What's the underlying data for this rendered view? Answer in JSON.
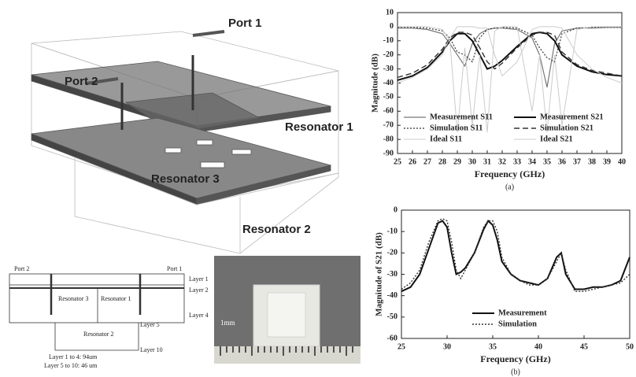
{
  "diagram": {
    "port1": "Port 1",
    "port2": "Port 2",
    "resonator1": "Resonator 1",
    "resonator3": "Resonator 3",
    "resonator2": "Resonator 2"
  },
  "cross_section": {
    "port2": "Port 2",
    "port1": "Port 1",
    "layer1": "Layer 1",
    "layer2": "Layer 2",
    "layer4": "Layer 4",
    "layer5": "Layer 5",
    "layer10": "Layer 10",
    "resonator3": "Resonator 3",
    "resonator1": "Resonator 1",
    "resonator2": "Resonator 2",
    "note1": "Layer 1 to 4: 94um",
    "note2": "Layer 5 to 10: 46 um"
  },
  "photo": {
    "scale": "1mm"
  },
  "chart_data": [
    {
      "type": "line",
      "caption": "(a)",
      "x_label": "Frequency (GHz)",
      "y_label": "Magnitude (dB)",
      "x": [
        25,
        26,
        27,
        28,
        28.5,
        29,
        29.5,
        30,
        30.5,
        31,
        31.5,
        32,
        33,
        34,
        34.5,
        35,
        35.5,
        36,
        37,
        38,
        39,
        40
      ],
      "xlim": [
        25,
        40
      ],
      "xticks": [
        25,
        26,
        27,
        28,
        29,
        30,
        31,
        32,
        33,
        34,
        35,
        36,
        37,
        38,
        39,
        40
      ],
      "ylim": [
        -90,
        10
      ],
      "yticks": [
        10,
        0,
        -10,
        -20,
        -30,
        -40,
        -50,
        -60,
        -70,
        -80,
        -90
      ],
      "legend": "lower left",
      "series": [
        {
          "name": "Measurement S11",
          "color": "#777777",
          "dash": "solid",
          "width": 1.2,
          "values": [
            -1,
            -1,
            -2,
            -5,
            -12,
            -20,
            -28,
            -12,
            -5,
            -2,
            -1,
            -1,
            -2,
            -8,
            -20,
            -43,
            -12,
            -3,
            -1,
            -1,
            -0.5,
            -0.5
          ]
        },
        {
          "name": "Measurement S21",
          "color": "#111111",
          "dash": "solid",
          "width": 2,
          "values": [
            -38,
            -35,
            -29,
            -18,
            -10,
            -5,
            -5,
            -10,
            -20,
            -30,
            -28,
            -24,
            -14,
            -5,
            -4,
            -5,
            -10,
            -20,
            -28,
            -32,
            -34,
            -35
          ]
        },
        {
          "name": "Simulation S11",
          "color": "#333333",
          "dash": "dotted",
          "width": 1.2,
          "values": [
            -0.5,
            -0.5,
            -1,
            -3,
            -8,
            -18,
            -20,
            -25,
            -8,
            -2,
            -1,
            -0.5,
            -1,
            -6,
            -15,
            -22,
            -25,
            -5,
            -1,
            -0.5,
            -0.5,
            -0.5
          ]
        },
        {
          "name": "Simulation S21",
          "color": "#333333",
          "dash": "dashed",
          "width": 1.4,
          "values": [
            -36,
            -33,
            -27,
            -16,
            -8,
            -4,
            -4,
            -6,
            -15,
            -25,
            -30,
            -26,
            -15,
            -6,
            -4,
            -4,
            -6,
            -18,
            -27,
            -31,
            -33,
            -35
          ]
        },
        {
          "name": "Ideal S11",
          "color": "#cccccc",
          "dash": "solid",
          "width": 1,
          "values": [
            0,
            0,
            0,
            -2,
            -10,
            -75,
            -15,
            -70,
            -20,
            -75,
            -3,
            0,
            0,
            -60,
            -20,
            -75,
            -20,
            -70,
            -2,
            0,
            0,
            0
          ]
        },
        {
          "name": "Ideal S21",
          "color": "#cccccc",
          "dash": "solid",
          "width": 1,
          "values": [
            -40,
            -36,
            -30,
            -20,
            -8,
            0,
            0,
            0,
            -1,
            -1,
            -20,
            -35,
            -25,
            -2,
            0,
            0,
            0,
            -1,
            -20,
            -30,
            -36,
            -40
          ]
        }
      ]
    },
    {
      "type": "line",
      "caption": "(b)",
      "x_label": "Frequency (GHz)",
      "y_label": "Magnitude of S21 (dB)",
      "x": [
        25,
        26,
        27,
        28,
        29,
        29.5,
        30,
        30.5,
        31,
        31.5,
        32,
        33,
        34,
        34.5,
        35,
        35.5,
        36,
        37,
        38,
        39,
        40,
        41,
        42,
        42.5,
        43,
        44,
        45,
        46,
        47,
        48,
        49,
        50
      ],
      "xlim": [
        25,
        50
      ],
      "xticks": [
        25,
        30,
        35,
        40,
        45,
        50
      ],
      "ylim": [
        -60,
        0
      ],
      "yticks": [
        0,
        -10,
        -20,
        -30,
        -40,
        -50,
        -60
      ],
      "legend": "lower center",
      "series": [
        {
          "name": "Measurement",
          "color": "#111111",
          "dash": "solid",
          "width": 2,
          "values": [
            -38,
            -36,
            -30,
            -18,
            -6,
            -5,
            -8,
            -20,
            -30,
            -29,
            -27,
            -20,
            -9,
            -5,
            -7,
            -14,
            -24,
            -30,
            -33,
            -34,
            -35,
            -32,
            -22,
            -20,
            -30,
            -37,
            -37,
            -36,
            -36,
            -35,
            -33,
            -22
          ]
        },
        {
          "name": "Simulation",
          "color": "#333333",
          "dash": "dotted",
          "width": 1.4,
          "values": [
            -37,
            -34,
            -28,
            -15,
            -5,
            -4,
            -5,
            -15,
            -28,
            -32,
            -28,
            -20,
            -8,
            -5,
            -5,
            -10,
            -22,
            -30,
            -33,
            -35,
            -35,
            -32,
            -24,
            -20,
            -28,
            -38,
            -38,
            -37,
            -36,
            -35,
            -34,
            -30
          ]
        }
      ]
    }
  ]
}
